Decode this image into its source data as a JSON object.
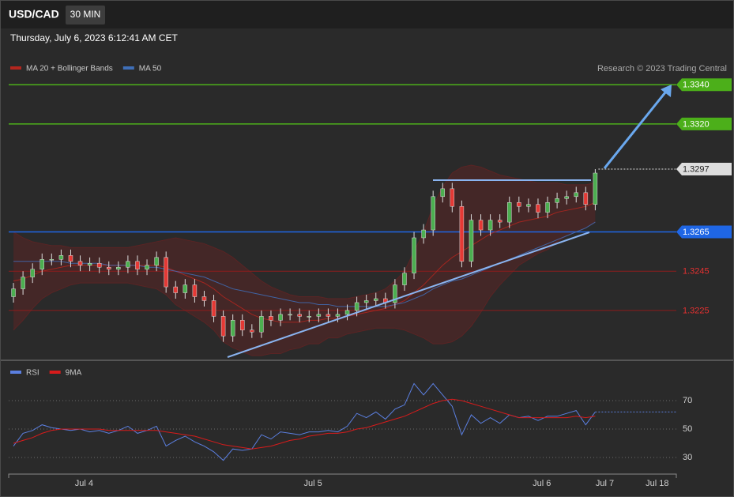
{
  "header": {
    "symbol": "USD/CAD",
    "interval": "30 MIN",
    "timestamp": "Thursday, July 6, 2023 6:12:41 AM CET"
  },
  "chart_data": [
    {
      "type": "candlestick",
      "credit": "Research © 2023 Trading Central",
      "up_color": "#4caf50",
      "down_color": "#e53935",
      "xlim": [
        0,
        70
      ],
      "ylim": [
        1.32,
        1.3359
      ],
      "open": [
        1.3232,
        1.3236,
        1.3242,
        1.3246,
        1.3251,
        1.3251,
        1.3253,
        1.325,
        1.3248,
        1.3249,
        1.3247,
        1.3246,
        1.3247,
        1.325,
        1.3246,
        1.3248,
        1.3252,
        1.3237,
        1.3234,
        1.3238,
        1.3232,
        1.323,
        1.3222,
        1.3212,
        1.322,
        1.3215,
        1.3214,
        1.3222,
        1.322,
        1.3223,
        1.3223,
        1.3222,
        1.3222,
        1.3223,
        1.3222,
        1.3223,
        1.3225,
        1.3229,
        1.323,
        1.3231,
        1.3229,
        1.3238,
        1.3244,
        1.3262,
        1.3266,
        1.3283,
        1.3287,
        1.3278,
        1.325,
        1.3271,
        1.3266,
        1.3271,
        1.327,
        1.328,
        1.3278,
        1.3279,
        1.3275,
        1.328,
        1.3282,
        1.3283,
        1.3285,
        1.3279
      ],
      "high": [
        1.3239,
        1.3245,
        1.3249,
        1.3254,
        1.3254,
        1.3256,
        1.3256,
        1.3253,
        1.3252,
        1.3252,
        1.325,
        1.325,
        1.3253,
        1.3253,
        1.3251,
        1.3255,
        1.3255,
        1.324,
        1.3241,
        1.3241,
        1.3235,
        1.3233,
        1.3225,
        1.3223,
        1.3223,
        1.3218,
        1.3225,
        1.3225,
        1.3226,
        1.3226,
        1.3226,
        1.3225,
        1.3226,
        1.3226,
        1.3226,
        1.3228,
        1.3232,
        1.3233,
        1.3234,
        1.3234,
        1.3241,
        1.3247,
        1.3265,
        1.3269,
        1.3286,
        1.329,
        1.329,
        1.3281,
        1.3274,
        1.3274,
        1.3274,
        1.3274,
        1.3283,
        1.3283,
        1.3282,
        1.3282,
        1.3283,
        1.3285,
        1.3286,
        1.3288,
        1.3288,
        1.3297
      ],
      "low": [
        1.3229,
        1.3233,
        1.3239,
        1.3243,
        1.3248,
        1.3248,
        1.3247,
        1.3245,
        1.3245,
        1.3244,
        1.3243,
        1.3243,
        1.3244,
        1.3243,
        1.3243,
        1.3245,
        1.3234,
        1.3231,
        1.3231,
        1.3229,
        1.3227,
        1.3219,
        1.3209,
        1.3209,
        1.3212,
        1.3211,
        1.3211,
        1.3217,
        1.3217,
        1.322,
        1.3219,
        1.3219,
        1.3219,
        1.3219,
        1.3219,
        1.322,
        1.3222,
        1.3226,
        1.3227,
        1.3226,
        1.3226,
        1.3235,
        1.3241,
        1.3259,
        1.3263,
        1.328,
        1.3275,
        1.3247,
        1.3247,
        1.3263,
        1.3263,
        1.3267,
        1.3267,
        1.3275,
        1.3275,
        1.3272,
        1.3272,
        1.3277,
        1.3279,
        1.328,
        1.3276,
        1.3276
      ],
      "close": [
        1.3236,
        1.3242,
        1.3246,
        1.3251,
        1.3251,
        1.3253,
        1.325,
        1.3248,
        1.3249,
        1.3247,
        1.3246,
        1.3247,
        1.325,
        1.3246,
        1.3248,
        1.3252,
        1.3237,
        1.3234,
        1.3238,
        1.3232,
        1.323,
        1.3222,
        1.3212,
        1.322,
        1.3215,
        1.3214,
        1.3222,
        1.322,
        1.3223,
        1.3223,
        1.3222,
        1.3222,
        1.3223,
        1.3222,
        1.3223,
        1.3225,
        1.3229,
        1.323,
        1.3231,
        1.3229,
        1.3238,
        1.3244,
        1.3262,
        1.3266,
        1.3283,
        1.3287,
        1.3278,
        1.325,
        1.3271,
        1.3266,
        1.3271,
        1.327,
        1.328,
        1.3278,
        1.3279,
        1.3275,
        1.328,
        1.3282,
        1.3283,
        1.3285,
        1.3279,
        1.3295
      ],
      "series": [
        {
          "name": "MA 20 + Bollinger Bands",
          "color": "#b3261e",
          "band_color": "#5a2424",
          "values": [
            1.324,
            1.3241,
            1.3243,
            1.3245,
            1.3246,
            1.3247,
            1.3248,
            1.3248,
            1.3248,
            1.3248,
            1.3248,
            1.3248,
            1.3248,
            1.3248,
            1.3248,
            1.3248,
            1.3247,
            1.3245,
            1.3243,
            1.3241,
            1.3239,
            1.3236,
            1.3232,
            1.3229,
            1.3226,
            1.3223,
            1.3221,
            1.322,
            1.3219,
            1.3219,
            1.3219,
            1.322,
            1.322,
            1.3221,
            1.3221,
            1.3222,
            1.3223,
            1.3224,
            1.3225,
            1.3226,
            1.3228,
            1.323,
            1.3234,
            1.3238,
            1.3243,
            1.3248,
            1.3252,
            1.3255,
            1.3258,
            1.3261,
            1.3264,
            1.3266,
            1.3268,
            1.327,
            1.3271,
            1.3272,
            1.3273,
            1.3275,
            1.3276,
            1.3277,
            1.3278,
            1.328
          ],
          "upper": [
            1.3265,
            1.3262,
            1.326,
            1.3259,
            1.3258,
            1.3258,
            1.3257,
            1.3257,
            1.3257,
            1.3257,
            1.3257,
            1.3257,
            1.3257,
            1.3258,
            1.3259,
            1.326,
            1.3261,
            1.3262,
            1.3261,
            1.326,
            1.3259,
            1.3257,
            1.3255,
            1.3252,
            1.3248,
            1.3244,
            1.324,
            1.3237,
            1.3235,
            1.3233,
            1.3232,
            1.3232,
            1.3232,
            1.3231,
            1.3231,
            1.3231,
            1.3232,
            1.3233,
            1.3234,
            1.3236,
            1.324,
            1.3245,
            1.3255,
            1.3265,
            1.3278,
            1.3288,
            1.3295,
            1.3298,
            1.3299,
            1.3298,
            1.3296,
            1.3294,
            1.3293,
            1.3292,
            1.3291,
            1.329,
            1.329,
            1.329,
            1.3289,
            1.3289,
            1.3289,
            1.329
          ],
          "lower": [
            1.3215,
            1.322,
            1.3226,
            1.3231,
            1.3234,
            1.3236,
            1.3238,
            1.3239,
            1.3239,
            1.3239,
            1.3239,
            1.3239,
            1.3239,
            1.3238,
            1.3237,
            1.3236,
            1.3233,
            1.3228,
            1.3225,
            1.3222,
            1.3219,
            1.3215,
            1.3209,
            1.3206,
            1.3204,
            1.3202,
            1.3202,
            1.3203,
            1.3203,
            1.3205,
            1.3206,
            1.3208,
            1.3208,
            1.3211,
            1.3211,
            1.3213,
            1.3214,
            1.3215,
            1.3216,
            1.3216,
            1.3216,
            1.3215,
            1.3213,
            1.3211,
            1.3208,
            1.3208,
            1.3209,
            1.3212,
            1.3217,
            1.3224,
            1.3232,
            1.3238,
            1.3243,
            1.3248,
            1.3251,
            1.3254,
            1.3256,
            1.326,
            1.3263,
            1.3265,
            1.3267,
            1.327
          ]
        },
        {
          "name": "MA 50",
          "color": "#3f6fb8",
          "values": [
            1.325,
            1.325,
            1.325,
            1.325,
            1.325,
            1.325,
            1.3249,
            1.3249,
            1.3249,
            1.3249,
            1.3248,
            1.3248,
            1.3248,
            1.3248,
            1.3247,
            1.3247,
            1.3246,
            1.3245,
            1.3244,
            1.3243,
            1.3242,
            1.324,
            1.3238,
            1.3236,
            1.3235,
            1.3234,
            1.3233,
            1.3232,
            1.3231,
            1.323,
            1.3229,
            1.3229,
            1.3228,
            1.3228,
            1.3227,
            1.3227,
            1.3227,
            1.3227,
            1.3227,
            1.3227,
            1.3228,
            1.3229,
            1.3231,
            1.3233,
            1.3236,
            1.3238,
            1.324,
            1.3241,
            1.3243,
            1.3245,
            1.3247,
            1.3249,
            1.3251,
            1.3253,
            1.3255,
            1.3257,
            1.3259,
            1.3261,
            1.3263,
            1.3265,
            1.3267,
            1.327
          ]
        }
      ],
      "levels": [
        {
          "value": 1.334,
          "label": "1.3340",
          "color": "#4caf1a",
          "text_color": "#ffffff",
          "box": true,
          "line": "solid"
        },
        {
          "value": 1.332,
          "label": "1.3320",
          "color": "#4caf1a",
          "text_color": "#ffffff",
          "box": true,
          "line": "solid"
        },
        {
          "value": 1.3297,
          "label": "1.3297",
          "color": "#dddddd",
          "text_color": "#222222",
          "box": true,
          "line": "dotted"
        },
        {
          "value": 1.3265,
          "label": "1.3265",
          "color": "#1f66e5",
          "text_color": "#ffffff",
          "box": true,
          "line": "solid"
        },
        {
          "value": 1.3245,
          "label": "1.3245",
          "color": "#8e1c1c",
          "text_color": "#e53030",
          "box": false,
          "line": "solid"
        },
        {
          "value": 1.3225,
          "label": "1.3225",
          "color": "#8e1c1c",
          "text_color": "#e53030",
          "box": false,
          "line": "solid"
        }
      ]
    },
    {
      "type": "line",
      "xlim": [
        0,
        70
      ],
      "xticks": [
        {
          "value": 7.9,
          "label": "Jul 4"
        },
        {
          "value": 31.9,
          "label": "Jul 5"
        },
        {
          "value": 55.9,
          "label": "Jul 6"
        },
        {
          "value": 62.5,
          "label": "Jul 7"
        },
        {
          "value": 68,
          "label": "Jul 18"
        }
      ],
      "ylim": [
        20,
        95
      ],
      "yticks": [
        30,
        50,
        70
      ],
      "grid": true,
      "series": [
        {
          "name": "RSI",
          "color": "#5b7fe0",
          "values": [
            38,
            47,
            49,
            53,
            51,
            50,
            49,
            50,
            48,
            49,
            47,
            49,
            52,
            47,
            49,
            52,
            38,
            42,
            45,
            41,
            38,
            34,
            28,
            36,
            35,
            36,
            46,
            43,
            48,
            47,
            46,
            48,
            48,
            49,
            48,
            52,
            61,
            58,
            62,
            57,
            64,
            67,
            82,
            74,
            82,
            74,
            66,
            46,
            60,
            54,
            58,
            54,
            60,
            58,
            59,
            56,
            59,
            59,
            61,
            63,
            53,
            62
          ]
        },
        {
          "name": "9MA",
          "color": "#d81b1b",
          "values": [
            40,
            42,
            44,
            47,
            49,
            50,
            50,
            50,
            50,
            50,
            49,
            49,
            49,
            49,
            49,
            49,
            48,
            47,
            46,
            45,
            43,
            41,
            39,
            38,
            37,
            36,
            37,
            38,
            40,
            42,
            43,
            45,
            46,
            47,
            47,
            48,
            50,
            51,
            53,
            55,
            57,
            59,
            62,
            65,
            68,
            70,
            71,
            70,
            68,
            66,
            64,
            62,
            60,
            58,
            58,
            58,
            58,
            58,
            58,
            59,
            58,
            59
          ]
        }
      ]
    }
  ]
}
